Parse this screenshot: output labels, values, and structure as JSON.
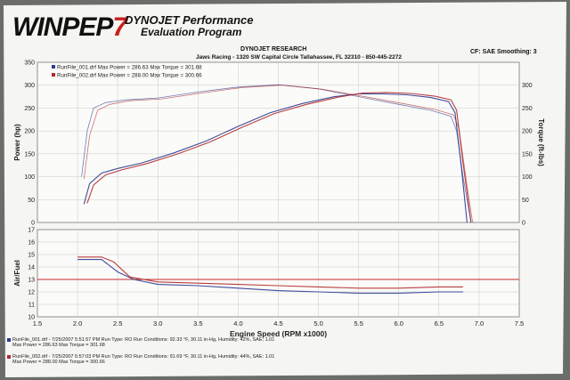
{
  "header": {
    "logo_text": "WINPEP",
    "logo_suffix": "7",
    "title_line1": "DYNOJET Performance",
    "title_line2": "Evaluation Program",
    "research": "DYNOJET RESEARCH",
    "address": "Jaws Racing - 1320 SW Capital Circle Tallahassee, FL 32310 - 850-445-2272",
    "settings": "CF: SAE  Smoothing: 3"
  },
  "legend": [
    "RunFile_001.drf Max Power = 286.63    Max Torque = 301.68",
    "RunFile_002.drf Max Power = 288.00    Max Torque = 300.66"
  ],
  "footer": [
    {
      "line1": "RunFile_001.drf - 7/25/2007 5:51:57 PM  Run Type: RO  Run Conditions: 92.33 °F, 30.11 in-Hg,  Humidity:  42%, SAE: 1.01",
      "line2": "Max Power = 286.63  Max Torque = 301.68"
    },
    {
      "line1": "RunFile_002.drf - 7/25/2007 5:57:03 PM  Run Type: RO  Run Conditions: 91.69 °F, 30.11 in-Hg,  Humidity:  44%, SAE: 1.01",
      "line2": "Max Power = 288.00  Max Torque = 300.66"
    }
  ],
  "colors": {
    "run1": "#2a3990",
    "run2": "#b02a2a",
    "target": "#c62828",
    "paper": "#f5f5f2",
    "grid": "#c9c9c9"
  },
  "chart_data": [
    {
      "type": "line",
      "xlabel": "",
      "ylabel": "Power (hp)",
      "y2label": "Torque (ft-lbs)",
      "xlim": [
        1.5,
        7.5
      ],
      "ylim": [
        0,
        350
      ],
      "y2lim": [
        0,
        350
      ],
      "xticks": [
        1.5,
        2.0,
        2.5,
        3.0,
        3.5,
        4.0,
        4.5,
        5.0,
        5.5,
        6.0,
        6.5,
        7.0,
        7.5
      ],
      "yticks": [
        0,
        50,
        100,
        150,
        200,
        250,
        300,
        350
      ],
      "y2ticks": [
        0,
        50,
        100,
        150,
        200,
        250,
        300
      ],
      "grid": true,
      "legend_position": "top-left",
      "series": [
        {
          "name": "RunFile_001.drf",
          "kind": "power",
          "x": [
            2.08,
            2.15,
            2.3,
            2.5,
            2.8,
            3.2,
            3.6,
            4.0,
            4.4,
            4.8,
            5.2,
            5.5,
            5.8,
            6.1,
            6.4,
            6.62,
            6.7,
            6.78,
            6.85
          ],
          "y": [
            40,
            85,
            108,
            118,
            130,
            152,
            178,
            210,
            240,
            260,
            275,
            281,
            281,
            279,
            273,
            264,
            240,
            120,
            0
          ]
        },
        {
          "name": "RunFile_002.drf",
          "kind": "power",
          "x": [
            2.12,
            2.2,
            2.35,
            2.55,
            2.85,
            3.25,
            3.65,
            4.05,
            4.45,
            4.85,
            5.25,
            5.55,
            5.85,
            6.15,
            6.45,
            6.65,
            6.72,
            6.8,
            6.9
          ],
          "y": [
            42,
            82,
            104,
            115,
            128,
            150,
            176,
            208,
            238,
            258,
            274,
            283,
            284,
            282,
            276,
            268,
            245,
            130,
            0
          ]
        },
        {
          "name": "RunFile_001.drf",
          "kind": "torque",
          "x": [
            2.05,
            2.12,
            2.2,
            2.35,
            2.6,
            3.0,
            3.5,
            4.0,
            4.5,
            5.0,
            5.5,
            6.0,
            6.4,
            6.65,
            6.72,
            6.8,
            6.9
          ],
          "y": [
            100,
            200,
            250,
            262,
            268,
            272,
            285,
            296,
            301,
            292,
            275,
            258,
            245,
            232,
            200,
            100,
            0
          ]
        },
        {
          "name": "RunFile_002.drf",
          "kind": "torque",
          "x": [
            2.08,
            2.15,
            2.25,
            2.4,
            2.65,
            3.05,
            3.55,
            4.05,
            4.55,
            5.05,
            5.55,
            6.05,
            6.45,
            6.68,
            6.75,
            6.83,
            6.92
          ],
          "y": [
            95,
            190,
            245,
            258,
            266,
            270,
            283,
            295,
            300,
            291,
            276,
            260,
            247,
            235,
            205,
            105,
            0
          ]
        }
      ]
    },
    {
      "type": "line",
      "xlabel": "Engine Speed (RPM x1000)",
      "ylabel": "Air/Fuel",
      "xlim": [
        1.5,
        7.5
      ],
      "ylim": [
        10,
        17
      ],
      "xticks": [
        1.5,
        2.0,
        2.5,
        3.0,
        3.5,
        4.0,
        4.5,
        5.0,
        5.5,
        6.0,
        6.5,
        7.0,
        7.5
      ],
      "xtick_labels": [
        "1.5",
        "2.0",
        "2.5",
        "3.0",
        "3.5",
        "4.0",
        "4.5",
        "5.0",
        "5.5",
        "6.0",
        "6.5",
        "7.0",
        "7.5"
      ],
      "yticks": [
        10,
        11,
        12,
        13,
        14,
        15,
        16,
        17
      ],
      "reference_line": 13.0,
      "grid": true,
      "series": [
        {
          "name": "RunFile_001.drf",
          "x": [
            2.0,
            2.3,
            2.5,
            2.7,
            3.0,
            3.5,
            4.0,
            4.5,
            5.0,
            5.5,
            6.0,
            6.5,
            6.8
          ],
          "y": [
            14.6,
            14.6,
            13.6,
            13.0,
            12.6,
            12.5,
            12.3,
            12.1,
            12.0,
            11.9,
            11.9,
            12.0,
            12.0
          ]
        },
        {
          "name": "RunFile_002.drf",
          "x": [
            2.0,
            2.3,
            2.45,
            2.65,
            3.0,
            3.5,
            4.0,
            4.5,
            5.0,
            5.5,
            6.0,
            6.5,
            6.8
          ],
          "y": [
            14.8,
            14.8,
            14.4,
            13.2,
            12.8,
            12.7,
            12.6,
            12.5,
            12.4,
            12.3,
            12.3,
            12.4,
            12.4
          ]
        }
      ]
    }
  ]
}
